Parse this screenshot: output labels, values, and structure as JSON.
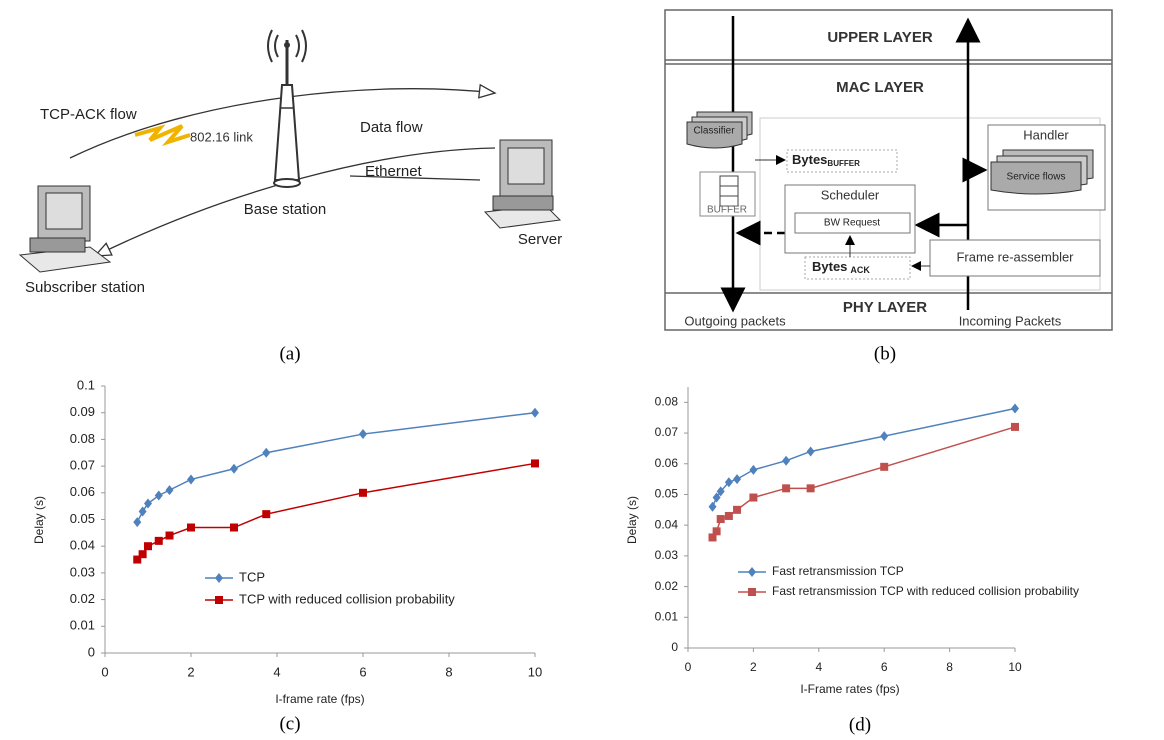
{
  "panel_a": {
    "caption": "(a)",
    "labels": {
      "tcp_ack_flow": "TCP-ACK flow",
      "link": "802.16 link",
      "data_flow": "Data flow",
      "ethernet": "Ethernet",
      "base_station": "Base station",
      "server": "Server",
      "subscriber_station": "Subscriber station"
    }
  },
  "panel_b": {
    "caption": "(b)",
    "upper_layer": "UPPER LAYER",
    "mac_layer": "MAC LAYER",
    "phy_layer": "PHY LAYER",
    "classifier": "Classifier",
    "buffer": "BUFFER",
    "bytes_buffer": {
      "text": "Bytes",
      "subscript": "BUFFER"
    },
    "scheduler": "Scheduler",
    "bw_request": "BW Request",
    "handler": "Handler",
    "service_flows": "Service flows",
    "frame_reassembler": "Frame re-assembler",
    "bytes_ack": {
      "text": "Bytes",
      "subscript": "ACK"
    },
    "outgoing": "Outgoing packets",
    "incoming": "Incoming Packets"
  },
  "chart_data": [
    {
      "type": "line",
      "caption": "(c)",
      "x_label": "I-frame rate (fps)",
      "y_label": "Delay (s)",
      "x": [
        0.75,
        0.875,
        1,
        1.25,
        1.5,
        2,
        3,
        3.75,
        6,
        10
      ],
      "xlim": [
        0,
        10
      ],
      "xticks": [
        0,
        2,
        4,
        6,
        8,
        10
      ],
      "ylim": [
        0,
        0.1
      ],
      "yticks": [
        0,
        0.01,
        0.02,
        0.03,
        0.04,
        0.05,
        0.06,
        0.07,
        0.08,
        0.09,
        0.1
      ],
      "series": [
        {
          "name": "TCP",
          "color": "#4f81bd",
          "marker": "diamond",
          "values": [
            0.049,
            0.053,
            0.056,
            0.059,
            0.061,
            0.065,
            0.069,
            0.075,
            0.082,
            0.09
          ]
        },
        {
          "name": "TCP with reduced collision probability",
          "color": "#c00000",
          "marker": "square",
          "values": [
            0.035,
            0.037,
            0.04,
            0.042,
            0.044,
            0.047,
            0.047,
            0.052,
            0.06,
            0.071
          ]
        }
      ]
    },
    {
      "type": "line",
      "caption": "(d)",
      "x_label": "I-Frame rates (fps)",
      "y_label": "Delay (s)",
      "x": [
        0.75,
        0.875,
        1,
        1.25,
        1.5,
        2,
        3,
        3.75,
        6,
        10
      ],
      "xlim": [
        0,
        10
      ],
      "xticks": [
        0,
        2,
        4,
        6,
        8,
        10
      ],
      "ylim": [
        0,
        0.085
      ],
      "yticks": [
        0,
        0.01,
        0.02,
        0.03,
        0.04,
        0.05,
        0.06,
        0.07,
        0.08
      ],
      "series": [
        {
          "name": "Fast retransmission TCP",
          "color": "#4f81bd",
          "marker": "diamond",
          "values": [
            0.046,
            0.049,
            0.051,
            0.054,
            0.055,
            0.058,
            0.061,
            0.064,
            0.069,
            0.078
          ]
        },
        {
          "name": "Fast retransmission TCP with reduced collision probability",
          "color": "#c0504d",
          "marker": "square",
          "values": [
            0.036,
            0.038,
            0.042,
            0.043,
            0.045,
            0.049,
            0.052,
            0.052,
            0.059,
            0.072
          ]
        }
      ]
    }
  ]
}
